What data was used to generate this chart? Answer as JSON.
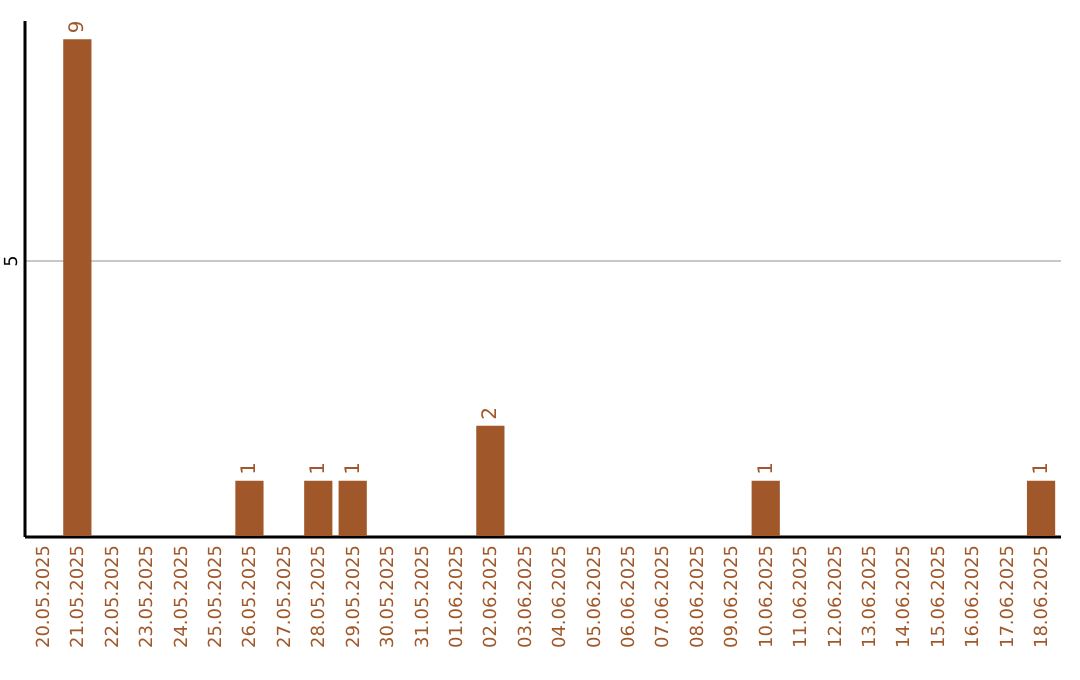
{
  "chart_data": {
    "type": "bar",
    "categories": [
      "20.05.2025",
      "21.05.2025",
      "22.05.2025",
      "23.05.2025",
      "24.05.2025",
      "25.05.2025",
      "26.05.2025",
      "27.05.2025",
      "28.05.2025",
      "29.05.2025",
      "30.05.2025",
      "31.05.2025",
      "01.06.2025",
      "02.06.2025",
      "03.06.2025",
      "04.06.2025",
      "05.06.2025",
      "06.06.2025",
      "07.06.2025",
      "08.06.2025",
      "09.06.2025",
      "10.06.2025",
      "11.06.2025",
      "12.06.2025",
      "13.06.2025",
      "14.06.2025",
      "15.06.2025",
      "16.06.2025",
      "17.06.2025",
      "18.06.2025"
    ],
    "values": [
      0,
      9,
      0,
      0,
      0,
      0,
      1,
      0,
      1,
      1,
      0,
      0,
      0,
      2,
      0,
      0,
      0,
      0,
      0,
      0,
      0,
      1,
      0,
      0,
      0,
      0,
      0,
      0,
      0,
      1
    ],
    "value_labels": [
      null,
      "9",
      null,
      null,
      null,
      null,
      "1",
      null,
      "1",
      "1",
      null,
      null,
      null,
      "2",
      null,
      null,
      null,
      null,
      null,
      null,
      null,
      "1",
      null,
      null,
      null,
      null,
      null,
      null,
      null,
      "1"
    ],
    "color": "#a0582a",
    "ylim": [
      0,
      9.35
    ],
    "yticks": [
      5
    ],
    "grid": "y"
  }
}
